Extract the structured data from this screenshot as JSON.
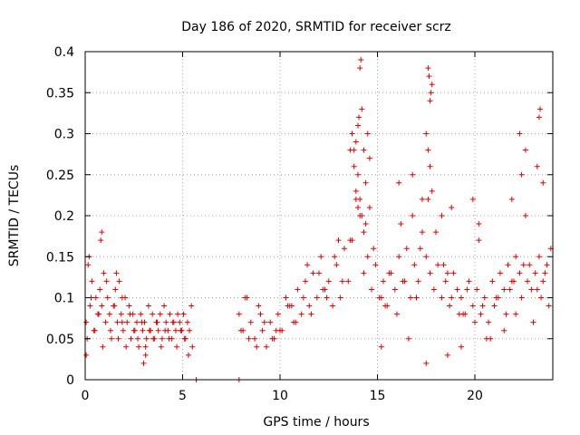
{
  "chart_data": {
    "type": "scatter",
    "title": "Day 186 of 2020, SRMTID for receiver scrz",
    "xlabel": "GPS time / hours",
    "ylabel": "SRMTID / TECUs",
    "xlim": [
      0,
      24
    ],
    "ylim": [
      0,
      0.4
    ],
    "xticks": [
      0,
      5,
      10,
      15,
      20
    ],
    "yticks": [
      0,
      0.05,
      0.1,
      0.15,
      0.2,
      0.25,
      0.3,
      0.35,
      0.4
    ],
    "xtick_labels": [
      "0",
      "5",
      "10",
      "15",
      "20"
    ],
    "ytick_labels": [
      "0",
      "0.05",
      "0.1",
      "0.15",
      "0.2",
      "0.25",
      "0.3",
      "0.35",
      "0.4"
    ],
    "grid": true,
    "marker": "plus",
    "color": "#e00000",
    "series": [
      {
        "x": [
          0.05,
          0.15,
          0.25,
          0.35,
          0.45,
          0.55,
          0.65,
          0.75,
          0.85,
          0.95,
          1.05,
          1.15,
          1.25,
          1.35,
          1.45,
          1.55,
          1.65,
          1.75,
          1.85,
          1.95,
          2.05,
          2.15,
          2.25,
          2.35,
          2.45,
          2.55,
          2.65,
          2.75,
          2.85,
          2.95,
          3.05,
          3.15,
          3.25,
          3.35,
          3.45,
          3.55,
          3.65,
          3.75,
          3.85,
          3.95,
          4.05,
          4.15,
          4.25,
          4.35,
          4.45,
          4.55,
          4.65,
          4.75,
          4.85,
          4.95,
          5.05,
          5.15,
          5.25,
          5.35,
          5.45,
          5.5,
          5.7,
          0.1,
          0.3,
          0.5,
          0.7,
          0.9,
          1.1,
          1.3,
          1.5,
          1.7,
          1.9,
          2.1,
          2.3,
          2.5,
          2.7,
          2.9,
          3.1,
          3.3,
          3.5,
          3.7,
          3.9,
          4.1,
          4.3,
          4.5,
          4.7,
          4.9,
          5.1,
          5.3,
          0.05,
          0.2,
          0.8,
          0.85,
          1.6,
          1.9,
          3.0,
          3.1,
          7.9,
          7.9,
          8.1,
          8.3,
          8.5,
          8.7,
          8.9,
          9.1,
          9.3,
          9.5,
          9.7,
          9.9,
          10.1,
          10.3,
          10.5,
          10.7,
          10.9,
          11.1,
          11.3,
          11.5,
          11.7,
          11.9,
          12.1,
          12.3,
          12.5,
          12.7,
          12.9,
          13.1,
          13.3,
          13.5,
          13.7,
          13.9,
          14.1,
          14.3,
          14.5,
          14.7,
          14.9,
          15.1,
          15.3,
          15.5,
          15.7,
          15.9,
          16.1,
          16.3,
          16.5,
          16.7,
          16.9,
          17.1,
          17.3,
          17.5,
          17.7,
          17.9,
          18.1,
          18.3,
          18.5,
          18.7,
          18.9,
          19.1,
          19.3,
          19.5,
          19.7,
          19.9,
          20.1,
          20.3,
          20.5,
          20.7,
          20.9,
          21.1,
          21.3,
          21.5,
          21.7,
          21.9,
          22.1,
          22.3,
          22.5,
          22.7,
          22.9,
          23.1,
          23.3,
          23.5,
          23.7,
          23.9,
          8.0,
          8.4,
          8.8,
          9.2,
          9.6,
          10.0,
          10.4,
          10.8,
          11.2,
          11.6,
          12.0,
          12.4,
          12.8,
          13.2,
          13.6,
          14.0,
          14.4,
          14.8,
          15.2,
          15.6,
          16.0,
          16.4,
          16.8,
          17.2,
          17.6,
          18.0,
          18.4,
          18.8,
          19.2,
          19.6,
          20.0,
          20.4,
          20.8,
          21.2,
          21.6,
          22.0,
          22.4,
          22.8,
          23.2,
          23.6,
          8.2,
          9.0,
          9.8,
          10.6,
          11.4,
          12.2,
          13.0,
          13.8,
          14.6,
          15.4,
          16.2,
          17.0,
          17.8,
          18.6,
          19.4,
          20.2,
          21.0,
          21.8,
          22.6,
          23.4,
          13.6,
          13.7,
          13.8,
          13.9,
          14.0,
          14.05,
          14.1,
          14.15,
          14.2,
          14.3,
          14.4,
          14.5,
          14.6,
          14.1,
          14.2,
          13.9,
          14.0,
          14.3,
          17.6,
          17.65,
          17.7,
          17.75,
          17.8,
          17.5,
          17.6,
          17.7,
          16.1,
          16.8,
          17.3,
          18.3,
          18.8,
          19.9,
          20.2,
          21.9,
          22.3,
          22.4,
          22.6,
          23.3,
          23.35,
          23.5,
          23.2,
          17.5,
          18.6,
          19.3,
          20.6,
          21.5,
          15.2,
          16.6,
          22.1,
          23.0,
          23.8
        ],
        "y": [
          0.07,
          0.14,
          0.09,
          0.12,
          0.06,
          0.1,
          0.08,
          0.11,
          0.09,
          0.13,
          0.07,
          0.1,
          0.08,
          0.05,
          0.09,
          0.11,
          0.07,
          0.12,
          0.08,
          0.06,
          0.1,
          0.07,
          0.09,
          0.05,
          0.08,
          0.06,
          0.07,
          0.04,
          0.08,
          0.06,
          0.07,
          0.05,
          0.09,
          0.06,
          0.08,
          0.05,
          0.07,
          0.06,
          0.08,
          0.05,
          0.09,
          0.07,
          0.06,
          0.08,
          0.05,
          0.07,
          0.06,
          0.08,
          0.07,
          0.06,
          0.08,
          0.05,
          0.07,
          0.06,
          0.09,
          0.04,
          0.0,
          0.05,
          0.1,
          0.06,
          0.08,
          0.04,
          0.12,
          0.06,
          0.09,
          0.05,
          0.07,
          0.04,
          0.08,
          0.06,
          0.05,
          0.07,
          0.04,
          0.06,
          0.05,
          0.07,
          0.04,
          0.06,
          0.05,
          0.07,
          0.04,
          0.06,
          0.05,
          0.03,
          0.03,
          0.15,
          0.17,
          0.18,
          0.13,
          0.1,
          0.02,
          0.03,
          0.0,
          0.08,
          0.06,
          0.1,
          0.07,
          0.05,
          0.09,
          0.06,
          0.04,
          0.07,
          0.05,
          0.08,
          0.06,
          0.1,
          0.09,
          0.07,
          0.11,
          0.08,
          0.12,
          0.09,
          0.13,
          0.1,
          0.15,
          0.11,
          0.12,
          0.09,
          0.14,
          0.1,
          0.16,
          0.12,
          0.17,
          0.22,
          0.2,
          0.13,
          0.15,
          0.11,
          0.14,
          0.1,
          0.12,
          0.09,
          0.13,
          0.11,
          0.15,
          0.12,
          0.16,
          0.1,
          0.14,
          0.12,
          0.18,
          0.15,
          0.13,
          0.11,
          0.14,
          0.1,
          0.12,
          0.09,
          0.13,
          0.11,
          0.1,
          0.08,
          0.12,
          0.09,
          0.11,
          0.08,
          0.1,
          0.07,
          0.12,
          0.1,
          0.13,
          0.11,
          0.14,
          0.12,
          0.15,
          0.13,
          0.14,
          0.12,
          0.11,
          0.13,
          0.15,
          0.12,
          0.14,
          0.16,
          0.06,
          0.05,
          0.04,
          0.07,
          0.05,
          0.06,
          0.09,
          0.07,
          0.1,
          0.08,
          0.13,
          0.1,
          0.15,
          0.12,
          0.17,
          0.25,
          0.19,
          0.16,
          0.1,
          0.13,
          0.08,
          0.12,
          0.2,
          0.16,
          0.22,
          0.18,
          0.14,
          0.1,
          0.08,
          0.11,
          0.07,
          0.09,
          0.05,
          0.1,
          0.08,
          0.12,
          0.1,
          0.14,
          0.11,
          0.13,
          0.1,
          0.08,
          0.06,
          0.09,
          0.14,
          0.11,
          0.17,
          0.28,
          0.21,
          0.09,
          0.19,
          0.1,
          0.23,
          0.13,
          0.08,
          0.17,
          0.09,
          0.11,
          0.2,
          0.1,
          0.28,
          0.3,
          0.26,
          0.29,
          0.31,
          0.32,
          0.38,
          0.39,
          0.33,
          0.28,
          0.24,
          0.3,
          0.27,
          0.22,
          0.2,
          0.23,
          0.21,
          0.18,
          0.38,
          0.37,
          0.34,
          0.35,
          0.36,
          0.3,
          0.28,
          0.26,
          0.24,
          0.25,
          0.22,
          0.2,
          0.21,
          0.22,
          0.19,
          0.22,
          0.3,
          0.25,
          0.28,
          0.32,
          0.33,
          0.24,
          0.26,
          0.02,
          0.03,
          0.04,
          0.05,
          0.06,
          0.04,
          0.05,
          0.08,
          0.07,
          0.09
        ],
        "name": ""
      }
    ]
  }
}
